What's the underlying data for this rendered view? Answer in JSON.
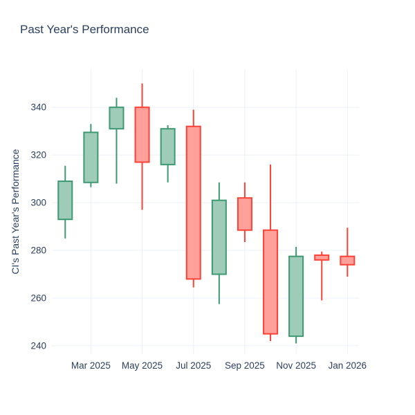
{
  "chart": {
    "title": "Past Year's Performance",
    "y_axis_title": "CI's Past Year's Performance"
  },
  "chart_data": {
    "type": "candlestick",
    "title": "Past Year's Performance",
    "xlabel": "",
    "ylabel": "CI's Past Year's Performance",
    "categories": [
      "Feb 2025",
      "Mar 2025",
      "Apr 2025",
      "May 2025",
      "Jun 2025",
      "Jul 2025",
      "Aug 2025",
      "Sep 2025",
      "Oct 2025",
      "Nov 2025",
      "Dec 2025",
      "Jan 2026"
    ],
    "ohlc": [
      {
        "x": "Feb 2025",
        "open": 293,
        "high": 315.5,
        "low": 285,
        "close": 309
      },
      {
        "x": "Mar 2025",
        "open": 308.5,
        "high": 333,
        "low": 306.5,
        "close": 329.5
      },
      {
        "x": "Apr 2025",
        "open": 331,
        "high": 344,
        "low": 308,
        "close": 340
      },
      {
        "x": "May 2025",
        "open": 340,
        "high": 350,
        "low": 297,
        "close": 317
      },
      {
        "x": "Jun 2025",
        "open": 316,
        "high": 332.5,
        "low": 308.5,
        "close": 331
      },
      {
        "x": "Jul 2025",
        "open": 332,
        "high": 339,
        "low": 264.5,
        "close": 268
      },
      {
        "x": "Aug 2025",
        "open": 270,
        "high": 308.5,
        "low": 257.5,
        "close": 301
      },
      {
        "x": "Sep 2025",
        "open": 302,
        "high": 308.5,
        "low": 283.5,
        "close": 288.5
      },
      {
        "x": "Oct 2025",
        "open": 288.5,
        "high": 316,
        "low": 242,
        "close": 245
      },
      {
        "x": "Nov 2025",
        "open": 244,
        "high": 281.5,
        "low": 241,
        "close": 277.5
      },
      {
        "x": "Dec 2025",
        "open": 278,
        "high": 279.5,
        "low": 259,
        "close": 276
      },
      {
        "x": "Jan 2026",
        "open": 277.5,
        "high": 289.5,
        "low": 269,
        "close": 274
      }
    ],
    "x_ticks": {
      "labels": [
        "Mar 2025",
        "May 2025",
        "Jul 2025",
        "Sep 2025",
        "Nov 2025",
        "Jan 2026"
      ],
      "month_indices": [
        1,
        3,
        5,
        7,
        9,
        11
      ]
    },
    "y_ticks": [
      240,
      260,
      280,
      300,
      320,
      340
    ],
    "y_range": [
      236.5,
      356
    ],
    "x_range": [
      -0.52,
      11.45
    ],
    "grid": true,
    "legend": "none",
    "colors": {
      "increasing_line": "#3D9970",
      "increasing_fill": "#9ECCB8",
      "decreasing_line": "#FF4136",
      "decreasing_fill": "#FFA09B",
      "grid": "#EBF0F8",
      "text": "#2A3F5F",
      "background": "#FFFFFF"
    }
  }
}
